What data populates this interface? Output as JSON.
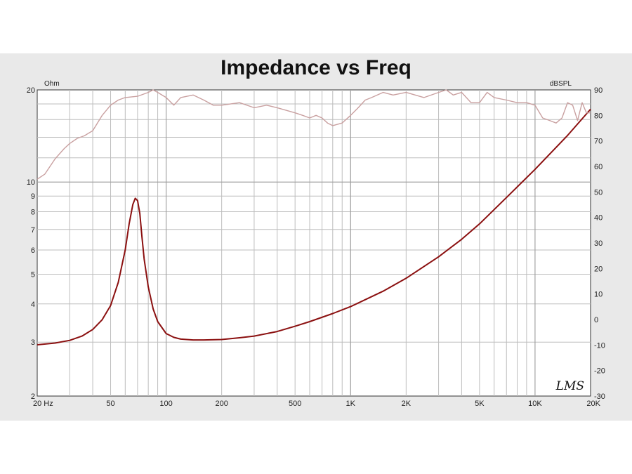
{
  "chart_data": {
    "type": "line",
    "title": "Impedance vs Freq",
    "watermark": "LMS",
    "x_scale": "log",
    "xlim": [
      20,
      20000
    ],
    "x_ticks": [
      20,
      50,
      100,
      200,
      500,
      1000,
      2000,
      5000,
      10000,
      20000
    ],
    "x_tick_labels": [
      "20  Hz",
      "50",
      "100",
      "200",
      "500",
      "1K",
      "2K",
      "5K",
      "10K",
      "20K"
    ],
    "left_axis": {
      "unit": "Ohm",
      "scale": "log",
      "lim": [
        2,
        20
      ],
      "ticks": [
        2,
        3,
        4,
        5,
        6,
        7,
        8,
        9,
        10,
        20
      ],
      "tick_labels": [
        "2",
        "3",
        "4",
        "5",
        "6",
        "7",
        "8",
        "9",
        "10",
        "20"
      ]
    },
    "right_axis": {
      "unit": "dBSPL",
      "scale": "linear",
      "lim": [
        -30,
        90
      ],
      "ticks": [
        -30,
        -20,
        -10,
        0,
        10,
        20,
        30,
        40,
        50,
        60,
        70,
        80,
        90
      ],
      "tick_labels": [
        "-30",
        "-20",
        "-10",
        "0",
        "10",
        "20",
        "30",
        "40",
        "50",
        "60",
        "70",
        "80",
        "90"
      ]
    },
    "grid": true,
    "series": [
      {
        "axis": "left",
        "color": "#8b1010",
        "x": [
          20,
          25,
          30,
          35,
          40,
          45,
          50,
          55,
          60,
          63,
          66,
          68,
          70,
          72,
          74,
          76,
          80,
          85,
          90,
          100,
          110,
          120,
          140,
          160,
          200,
          250,
          300,
          400,
          500,
          600,
          800,
          1000,
          1500,
          2000,
          3000,
          4000,
          5000,
          7000,
          10000,
          15000,
          20000
        ],
        "values": [
          2.94,
          2.98,
          3.04,
          3.14,
          3.3,
          3.55,
          3.95,
          4.7,
          6.0,
          7.3,
          8.45,
          8.85,
          8.7,
          7.9,
          6.6,
          5.6,
          4.55,
          3.85,
          3.5,
          3.2,
          3.11,
          3.07,
          3.05,
          3.05,
          3.06,
          3.1,
          3.14,
          3.25,
          3.38,
          3.5,
          3.72,
          3.92,
          4.4,
          4.85,
          5.7,
          6.5,
          7.3,
          8.9,
          11.0,
          14.2,
          17.3
        ]
      },
      {
        "axis": "right",
        "color": "#c9a0a0",
        "x": [
          20,
          22,
          25,
          28,
          30,
          33,
          36,
          40,
          45,
          50,
          55,
          60,
          70,
          80,
          85,
          90,
          100,
          110,
          120,
          140,
          160,
          180,
          200,
          250,
          300,
          350,
          400,
          500,
          550,
          600,
          650,
          700,
          750,
          800,
          900,
          1000,
          1100,
          1200,
          1300,
          1500,
          1700,
          2000,
          2500,
          3000,
          3300,
          3600,
          4000,
          4500,
          5000,
          5500,
          6000,
          7000,
          8000,
          9000,
          10000,
          11000,
          12000,
          13000,
          14000,
          15000,
          16000,
          17000,
          18000,
          19000,
          20000
        ],
        "values": [
          55,
          57,
          63,
          67,
          69,
          71,
          72,
          74,
          80,
          84,
          86,
          87,
          87.5,
          89,
          90,
          89,
          87,
          84,
          87,
          88,
          86,
          84,
          84,
          85,
          83,
          84,
          83,
          81,
          80,
          79,
          80,
          79,
          77,
          76,
          77,
          80,
          83,
          86,
          87,
          89,
          88,
          89,
          87,
          89,
          90,
          88,
          89,
          85,
          85,
          89,
          87,
          86,
          85,
          85,
          84,
          79,
          78,
          77,
          79,
          85,
          84,
          78,
          85,
          81,
          81
        ]
      }
    ]
  }
}
